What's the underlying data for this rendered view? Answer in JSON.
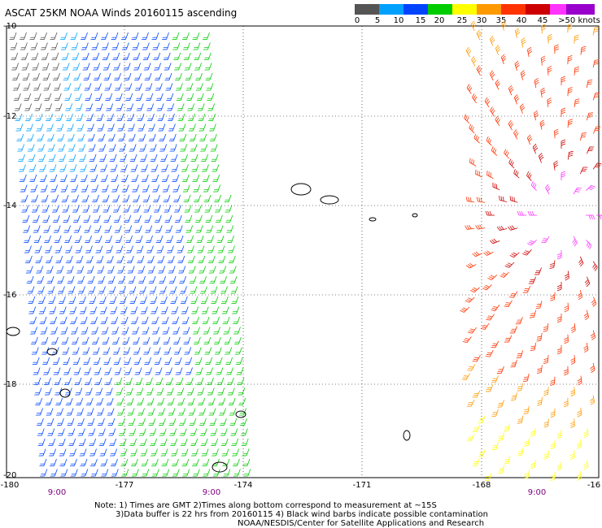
{
  "title": "ASCAT 25KM NOAA Winds 20160115 ascending",
  "legend": {
    "labels": [
      "0",
      "5",
      "10",
      "15",
      "20",
      "25",
      "30",
      "35",
      "40",
      "45",
      ">50 knots"
    ],
    "colors": [
      "#555555",
      "#00a0ff",
      "#0044ff",
      "#00cc00",
      "#ffff00",
      "#ff9900",
      "#ff3300",
      "#cc0000",
      "#ff33ff",
      "#9900cc"
    ]
  },
  "lat_labels": [
    "-10",
    "-12",
    "-14",
    "-16",
    "-18",
    "-20"
  ],
  "lon_labels": [
    "-180",
    "-177",
    "-174",
    "-171",
    "-168",
    "-16"
  ],
  "time_labels": [
    "9:00",
    "9:00",
    "9:00"
  ],
  "notes": {
    "line1": "Note: 1) Times are GMT 2)Times along bottom correspond to measurement at ~15S",
    "line2": "3)Data buffer is 22 hrs from 20160115 4) Black wind barbs indicate possible contamination",
    "line3": "NOAA/NESDIS/Center for Satellite Applications and Research"
  }
}
